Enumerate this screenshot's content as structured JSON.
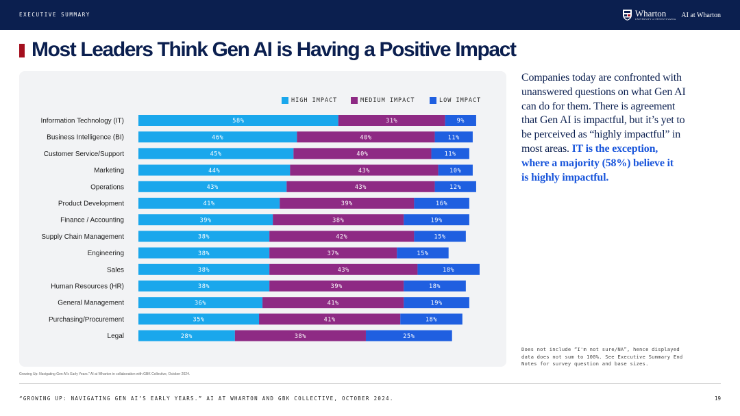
{
  "header": {
    "section_label": "EXECUTIVE SUMMARY",
    "brand_name": "Wharton",
    "brand_subtitle": "UNIVERSITY of PENNSYLVANIA",
    "brand_unit": "AI at Wharton",
    "bar_color": "#0b1f4f"
  },
  "title": "Most Leaders Think Gen AI is Having a Positive Impact",
  "accent_color": "#a40f1e",
  "chart_data": {
    "type": "bar",
    "orientation": "horizontal",
    "stacked": true,
    "value_suffix": "%",
    "categories": [
      "Information Technology (IT)",
      "Business Intelligence (BI)",
      "Customer Service/Support",
      "Marketing",
      "Operations",
      "Product Development",
      "Finance / Accounting",
      "Supply Chain Management",
      "Engineering",
      "Sales",
      "Human Resources (HR)",
      "General Management",
      "Purchasing/Procurement",
      "Legal"
    ],
    "series": [
      {
        "name": "HIGH IMPACT",
        "color": "#1aa7ec",
        "values": [
          58,
          46,
          45,
          44,
          43,
          41,
          39,
          38,
          38,
          38,
          38,
          36,
          35,
          28
        ]
      },
      {
        "name": "MEDIUM IMPACT",
        "color": "#8e2a84",
        "values": [
          31,
          40,
          40,
          43,
          43,
          39,
          38,
          42,
          37,
          43,
          39,
          41,
          41,
          38
        ]
      },
      {
        "name": "LOW IMPACT",
        "color": "#1f5fe0",
        "values": [
          9,
          11,
          11,
          10,
          12,
          16,
          19,
          15,
          15,
          18,
          18,
          19,
          18,
          25
        ]
      }
    ],
    "legend_position": "top-right",
    "grid": false
  },
  "commentary": {
    "lines": [
      {
        "text": "Companies today are confronted with",
        "highlight": false
      },
      {
        "text": "unanswered questions on what Gen AI",
        "highlight": false
      },
      {
        "text": "can do for them. There is agreement",
        "highlight": false
      },
      {
        "text": "that Gen AI is impactful, but it’s yet to",
        "highlight": false
      },
      {
        "text": "be perceived as “highly impactful” in",
        "highlight": false
      },
      {
        "text": "most areas.",
        "highlight": false,
        "tail": "IT is the exception,"
      },
      {
        "text": "where a majority (58%) believe it",
        "highlight": true
      },
      {
        "text": "is highly impactful.",
        "highlight": true
      }
    ],
    "highlight_color": "#1a56db"
  },
  "footnote": {
    "lines": [
      "Does not include “I'm not sure/NA”, hence displayed",
      "data does not sum to 100%. See Executive Summary End",
      "Notes for survey question and base sizes."
    ]
  },
  "source_small": "Growing Up: Navigating Gen AI's Early Years.\" AI at Wharton in collaboration with GBK Collective, October 2024.",
  "footer": {
    "source": "“GROWING UP: NAVIGATING GEN AI’S EARLY YEARS.” AI AT WHARTON AND GBK COLLECTIVE, OCTOBER 2024.",
    "page_number": "19"
  }
}
